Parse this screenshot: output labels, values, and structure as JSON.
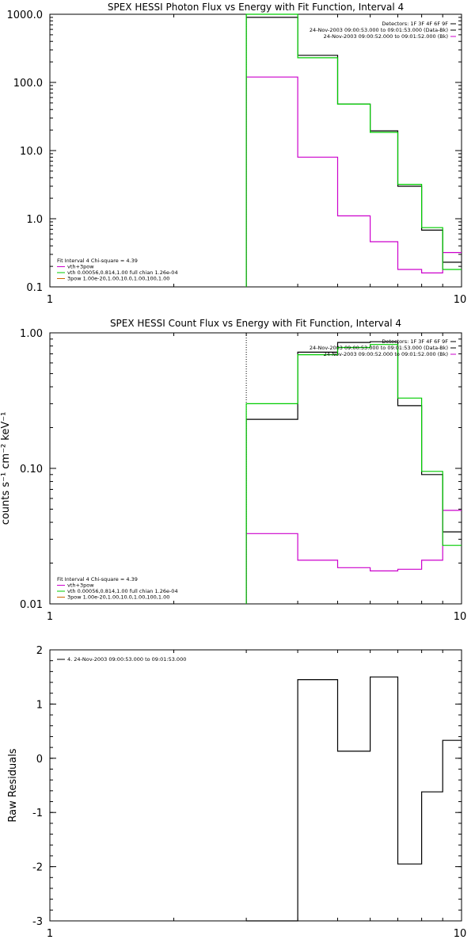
{
  "chart_data": [
    {
      "type": "line",
      "title": "SPEX HESSI Photon Flux vs Energy with Fit Function, Interval 4",
      "xlabel": "",
      "ylabel": "",
      "xscale": "log",
      "yscale": "log",
      "xlim": [
        1,
        10
      ],
      "ylim": [
        0.1,
        1000
      ],
      "xticks": [
        "1",
        "10"
      ],
      "yticks": [
        {
          "v": 1000,
          "label": "1000.0"
        },
        {
          "v": 100,
          "label": "100.0"
        },
        {
          "v": 10,
          "label": "10.0"
        },
        {
          "v": 1,
          "label": "1.0"
        },
        {
          "v": 0.1,
          "label": "0.1"
        }
      ],
      "bin_edges": [
        3,
        4,
        5,
        6,
        7,
        8,
        9,
        10
      ],
      "series": [
        {
          "name": "data",
          "color": "#000000",
          "values": [
            900,
            250,
            48,
            19.5,
            3.0,
            0.68,
            0.23
          ]
        },
        {
          "name": "vth+3pow",
          "color": "#cc00cc",
          "values": [
            120,
            8.0,
            1.1,
            0.46,
            0.18,
            0.16,
            0.32
          ]
        },
        {
          "name": "vth",
          "color": "#00cc00",
          "values": [
            1000,
            230,
            48,
            18.5,
            3.2,
            0.74,
            0.18
          ]
        }
      ],
      "vline": {
        "x": 3,
        "color": "#00cc00"
      },
      "annotations": [
        {
          "text": "Detectors: 1F 3F 4F 6F 9F",
          "color": "#000000"
        },
        {
          "text": "24-Nov-2003 09:00:53.000 to 09:01:53.000 (Data-Bk)",
          "color": "#000000"
        },
        {
          "text": "24-Nov-2003 09:00:52.000 to 09:01:52.000 (Bk)",
          "color": "#cc00cc"
        }
      ],
      "legend": [
        {
          "text": "Fit Interval 4   Chi-square = 4.39",
          "color": ""
        },
        {
          "text": "vth+3pow",
          "color": "#cc00cc"
        },
        {
          "text": "vth 0.00056,0.814,1.00  full chian 1.26e-04",
          "color": "#00cc00"
        },
        {
          "text": "3pow 1.00e-20,1.00,10.0,1.00,100,1.00",
          "color": "#cc6600"
        }
      ]
    },
    {
      "type": "line",
      "title": "SPEX HESSI Count Flux vs Energy with Fit Function, Interval 4",
      "xlabel": "",
      "ylabel": "counts s⁻¹ cm⁻² keV⁻¹",
      "xscale": "log",
      "yscale": "log",
      "xlim": [
        1,
        10
      ],
      "ylim": [
        0.01,
        1
      ],
      "xticks": [
        "1",
        "10"
      ],
      "yticks": [
        {
          "v": 1,
          "label": "1.00"
        },
        {
          "v": 0.1,
          "label": "0.10"
        },
        {
          "v": 0.01,
          "label": "0.01"
        }
      ],
      "bin_edges": [
        3,
        4,
        5,
        6,
        7,
        8,
        9,
        10
      ],
      "series": [
        {
          "name": "data",
          "color": "#000000",
          "values": [
            0.23,
            0.72,
            0.85,
            0.86,
            0.29,
            0.09,
            0.034
          ]
        },
        {
          "name": "vth+3pow",
          "color": "#cc00cc",
          "values": [
            0.033,
            0.021,
            0.0185,
            0.0175,
            0.018,
            0.021,
            0.049
          ]
        },
        {
          "name": "vth",
          "color": "#00cc00",
          "values": [
            0.3,
            0.69,
            0.78,
            0.82,
            0.33,
            0.095,
            0.027
          ]
        }
      ],
      "vline": {
        "x": 3,
        "color": "#000000"
      },
      "annotations": [
        {
          "text": "Detectors: 1F 3F 4F 6F 9F",
          "color": "#000000"
        },
        {
          "text": "24-Nov-2003 09:00:53.000 to 09:01:53.000 (Data-Bk)",
          "color": "#000000"
        },
        {
          "text": "24-Nov-2003 09:00:52.000 to 09:01:52.000 (Bk)",
          "color": "#cc00cc"
        }
      ],
      "legend": [
        {
          "text": "Fit Interval 4   Chi-square = 4.39",
          "color": ""
        },
        {
          "text": "vth+3pow",
          "color": "#cc00cc"
        },
        {
          "text": "vth 0.00056,0.814,1.00  full chian 1.26e-04",
          "color": "#00cc00"
        },
        {
          "text": "3pow 1.00e-20,1.00,10.0,1.00,100,1.00",
          "color": "#cc6600"
        }
      ]
    },
    {
      "type": "line",
      "title": "",
      "xlabel": "",
      "ylabel": "Raw Residuals",
      "xscale": "log",
      "yscale": "linear",
      "xlim": [
        1,
        10
      ],
      "ylim": [
        -3,
        2
      ],
      "xticks": [
        "1",
        "10"
      ],
      "yticks": [
        {
          "v": 2,
          "label": "2"
        },
        {
          "v": 1,
          "label": "1"
        },
        {
          "v": 0,
          "label": "0"
        },
        {
          "v": -1,
          "label": "-1"
        },
        {
          "v": -2,
          "label": "-2"
        },
        {
          "v": -3,
          "label": "-3"
        }
      ],
      "bin_edges": [
        3,
        4,
        5,
        6,
        7,
        8,
        9,
        10
      ],
      "series": [
        {
          "name": "4. 24-Nov-2003 09:00:53.000 to 09:01:53.000",
          "color": "#000000",
          "values": [
            -3.05,
            1.45,
            0.13,
            1.5,
            -1.95,
            -0.62,
            0.33
          ]
        }
      ],
      "legend": [
        {
          "text": "4. 24-Nov-2003 09:00:53.000 to 09:01:53.000",
          "color": "#000000"
        }
      ]
    }
  ]
}
